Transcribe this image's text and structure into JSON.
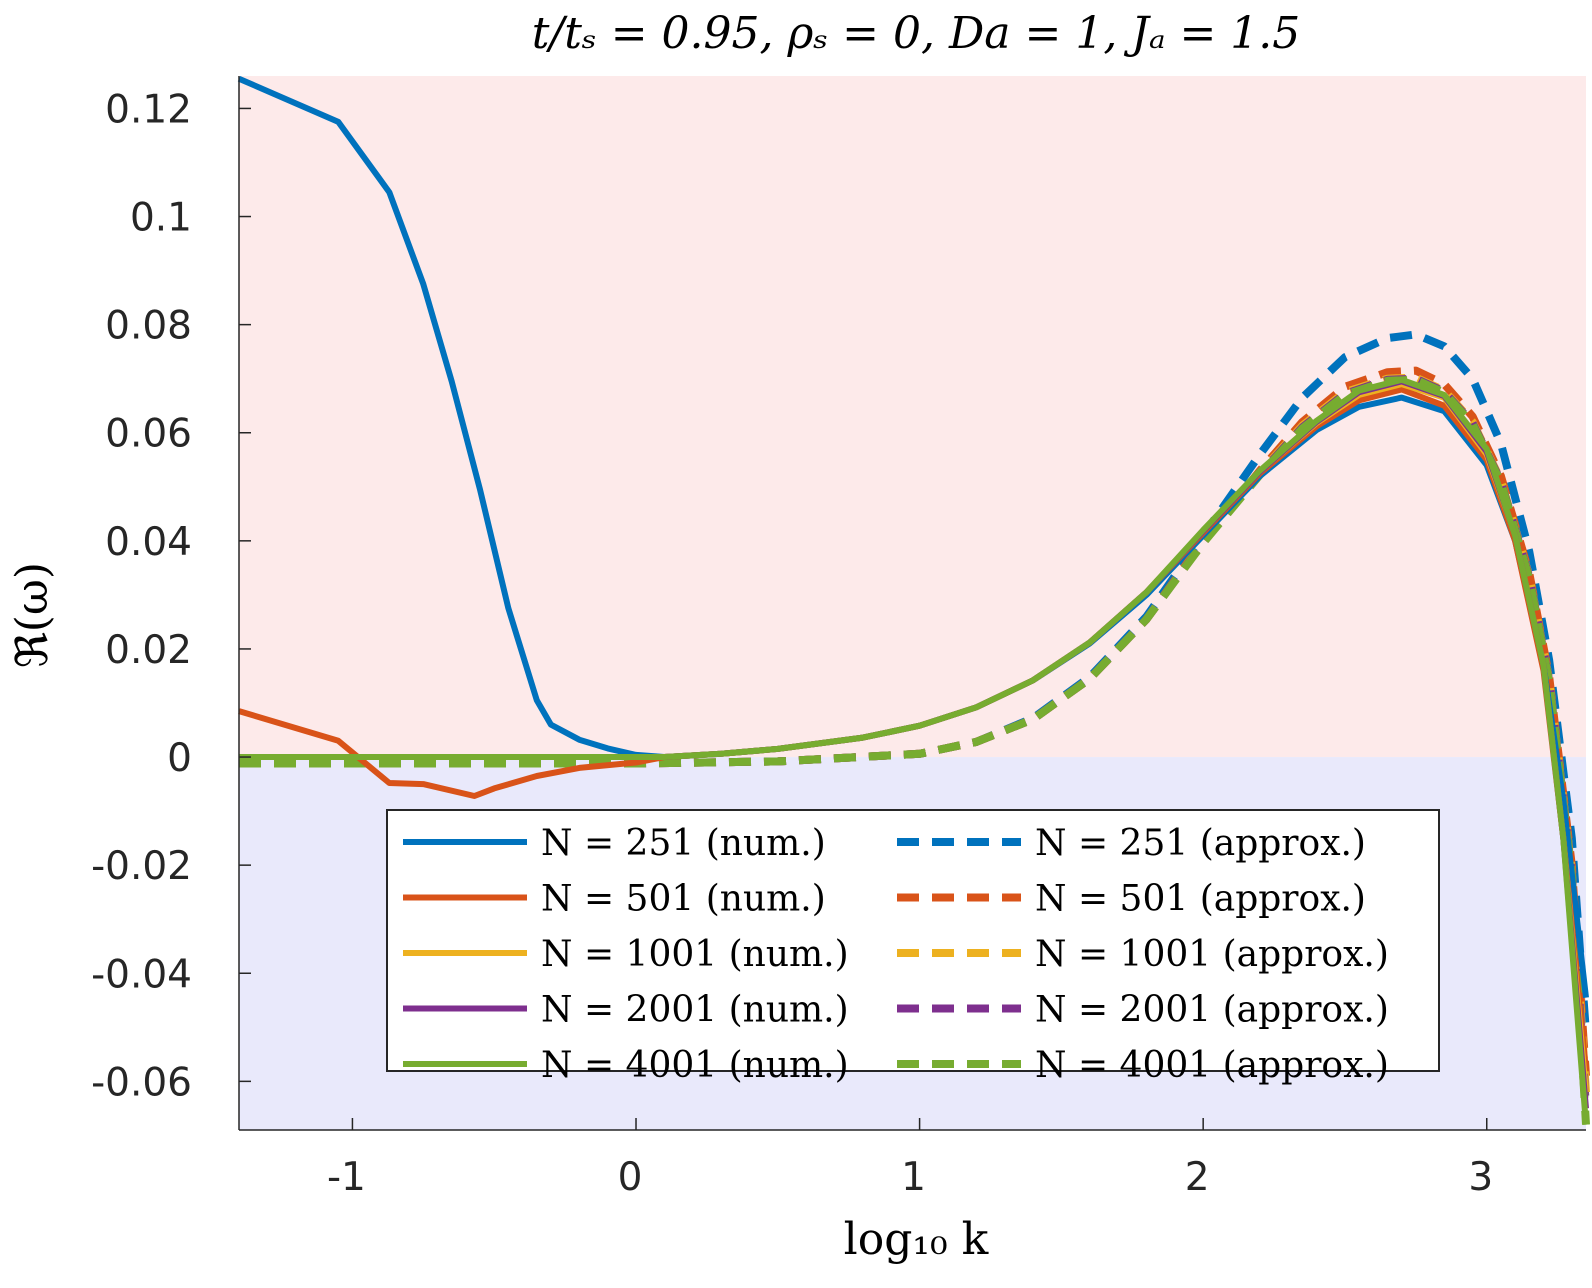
{
  "chart_data": {
    "type": "line",
    "title": "t/tₛ = 0.95, ρₛ = 0, Da = 1, Jₐ = 1.5",
    "xlabel": "log₁₀ k",
    "ylabel": "ℜ(ω)",
    "xlim": [
      -1.4,
      3.35
    ],
    "ylim": [
      -0.069,
      0.126
    ],
    "x_ticks": [
      -1,
      0,
      1,
      2,
      3
    ],
    "x_tick_labels": [
      "-1",
      "0",
      "1",
      "2",
      "3"
    ],
    "y_ticks": [
      -0.06,
      -0.04,
      -0.02,
      0,
      0.02,
      0.04,
      0.06,
      0.08,
      0.1,
      0.12
    ],
    "y_tick_labels": [
      "-0.06",
      "-0.04",
      "-0.02",
      "0",
      "0.02",
      "0.04",
      "0.06",
      "0.08",
      "0.1",
      "0.12"
    ],
    "regions": [
      {
        "name": "unstable",
        "y_from": 0,
        "y_to": 0.126,
        "color": "#fdeaea"
      },
      {
        "name": "stable",
        "y_from": -0.069,
        "y_to": 0,
        "color": "#e9e9fb"
      }
    ],
    "series": [
      {
        "name": "N = 251 (num.)",
        "color": "#0072BD",
        "dash": false,
        "x": [
          -1.4,
          -1.05,
          -0.87,
          -0.75,
          -0.65,
          -0.55,
          -0.45,
          -0.35,
          -0.3,
          -0.2,
          -0.1,
          0,
          0.1,
          0.3,
          0.5,
          0.8,
          1.0,
          1.2,
          1.4,
          1.6,
          1.8,
          2.0,
          2.2,
          2.4,
          2.55,
          2.7,
          2.85,
          3.0,
          3.1,
          3.2,
          3.27,
          3.35
        ],
        "y": [
          0.1255,
          0.1175,
          0.1045,
          0.0875,
          0.0695,
          0.0495,
          0.0275,
          0.0105,
          0.006,
          0.0032,
          0.0016,
          0.0004,
          0.0,
          0.0006,
          0.0015,
          0.0036,
          0.0058,
          0.0092,
          0.0142,
          0.021,
          0.03,
          0.041,
          0.052,
          0.0605,
          0.0648,
          0.0665,
          0.064,
          0.054,
          0.04,
          0.017,
          -0.008,
          -0.0445
        ]
      },
      {
        "name": "N = 501 (num.)",
        "color": "#D95319",
        "dash": false,
        "x": [
          -1.4,
          -1.05,
          -0.87,
          -0.75,
          -0.57,
          -0.5,
          -0.35,
          -0.2,
          0,
          0.1,
          0.3,
          0.5,
          0.8,
          1.0,
          1.2,
          1.4,
          1.6,
          1.8,
          2.0,
          2.2,
          2.4,
          2.55,
          2.7,
          2.85,
          3.0,
          3.1,
          3.2,
          3.27,
          3.35
        ],
        "y": [
          0.0085,
          0.003,
          -0.0048,
          -0.005,
          -0.0072,
          -0.0058,
          -0.0035,
          -0.002,
          -0.001,
          0.0,
          0.0006,
          0.0015,
          0.0036,
          0.0058,
          0.0092,
          0.0142,
          0.0212,
          0.0305,
          0.0415,
          0.0525,
          0.0612,
          0.066,
          0.068,
          0.065,
          0.055,
          0.04,
          0.016,
          -0.015,
          -0.058
        ]
      },
      {
        "name": "N = 1001 (num.)",
        "color": "#EDB120",
        "dash": false,
        "x": [
          -1.4,
          0,
          0.1,
          0.3,
          0.5,
          0.8,
          1.0,
          1.2,
          1.4,
          1.6,
          1.8,
          2.0,
          2.2,
          2.4,
          2.55,
          2.7,
          2.85,
          3.0,
          3.1,
          3.2,
          3.27,
          3.35
        ],
        "y": [
          0.0,
          0.0,
          0.0,
          0.0006,
          0.0015,
          0.0036,
          0.0058,
          0.0092,
          0.0142,
          0.0212,
          0.0305,
          0.0418,
          0.0528,
          0.0618,
          0.067,
          0.069,
          0.0665,
          0.056,
          0.041,
          0.017,
          -0.015,
          -0.062
        ]
      },
      {
        "name": "N = 2001 (num.)",
        "color": "#7E2F8E",
        "dash": false,
        "x": [
          -1.4,
          0,
          0.1,
          0.3,
          0.5,
          0.8,
          1.0,
          1.2,
          1.4,
          1.6,
          1.8,
          2.0,
          2.2,
          2.4,
          2.55,
          2.7,
          2.85,
          3.0,
          3.1,
          3.2,
          3.27,
          3.35
        ],
        "y": [
          0.0,
          0.0,
          0.0,
          0.0006,
          0.0015,
          0.0036,
          0.0058,
          0.0092,
          0.0142,
          0.0212,
          0.0305,
          0.0418,
          0.0528,
          0.062,
          0.0675,
          0.0695,
          0.0668,
          0.0565,
          0.041,
          0.017,
          -0.015,
          -0.065
        ]
      },
      {
        "name": "N = 4001 (num.)",
        "color": "#77AC30",
        "dash": false,
        "x": [
          -1.4,
          0,
          0.1,
          0.3,
          0.5,
          0.8,
          1.0,
          1.2,
          1.4,
          1.6,
          1.8,
          2.0,
          2.2,
          2.4,
          2.55,
          2.7,
          2.85,
          3.0,
          3.1,
          3.2,
          3.27,
          3.35
        ],
        "y": [
          0.0,
          0.0,
          0.0,
          0.0006,
          0.0015,
          0.0036,
          0.0058,
          0.0092,
          0.0142,
          0.0212,
          0.0305,
          0.042,
          0.053,
          0.0622,
          0.0678,
          0.0698,
          0.067,
          0.057,
          0.041,
          0.017,
          -0.015,
          -0.068
        ]
      },
      {
        "name": "N = 251 (approx.)",
        "color": "#0072BD",
        "dash": true,
        "x": [
          -1.4,
          0,
          0.5,
          1.0,
          1.2,
          1.4,
          1.6,
          1.8,
          2.0,
          2.2,
          2.35,
          2.5,
          2.65,
          2.75,
          2.85,
          2.95,
          3.05,
          3.15,
          3.22,
          3.3,
          3.35
        ],
        "y": [
          -0.0012,
          -0.0012,
          -0.0008,
          0.0006,
          0.0028,
          0.0072,
          0.0148,
          0.026,
          0.041,
          0.056,
          0.0665,
          0.074,
          0.0775,
          0.0782,
          0.076,
          0.07,
          0.058,
          0.038,
          0.018,
          -0.015,
          -0.051
        ]
      },
      {
        "name": "N = 501 (approx.)",
        "color": "#D95319",
        "dash": true,
        "x": [
          -1.4,
          0,
          0.5,
          1.0,
          1.2,
          1.4,
          1.6,
          1.8,
          2.0,
          2.2,
          2.35,
          2.5,
          2.65,
          2.75,
          2.85,
          2.95,
          3.05,
          3.15,
          3.22,
          3.3,
          3.35
        ],
        "y": [
          -0.0012,
          -0.0012,
          -0.0008,
          0.0006,
          0.0028,
          0.007,
          0.0145,
          0.0255,
          0.04,
          0.053,
          0.062,
          0.0685,
          0.0712,
          0.0715,
          0.069,
          0.063,
          0.052,
          0.034,
          0.015,
          -0.02,
          -0.059
        ]
      },
      {
        "name": "N = 1001 (approx.)",
        "color": "#EDB120",
        "dash": true,
        "x": [
          -1.4,
          0,
          0.5,
          1.0,
          1.2,
          1.4,
          1.6,
          1.8,
          2.0,
          2.2,
          2.35,
          2.5,
          2.65,
          2.75,
          2.85,
          2.95,
          3.05,
          3.15,
          3.22,
          3.3,
          3.35
        ],
        "y": [
          -0.0012,
          -0.0012,
          -0.0008,
          0.0006,
          0.0028,
          0.007,
          0.0145,
          0.0255,
          0.0398,
          0.0526,
          0.0613,
          0.0675,
          0.07,
          0.0702,
          0.0678,
          0.062,
          0.0512,
          0.0335,
          0.0145,
          -0.021,
          -0.062
        ]
      },
      {
        "name": "N = 2001 (approx.)",
        "color": "#7E2F8E",
        "dash": true,
        "x": [
          -1.4,
          0,
          0.5,
          1.0,
          1.2,
          1.4,
          1.6,
          1.8,
          2.0,
          2.2,
          2.35,
          2.5,
          2.65,
          2.75,
          2.85,
          2.95,
          3.05,
          3.15,
          3.22,
          3.3,
          3.35
        ],
        "y": [
          -0.0012,
          -0.0012,
          -0.0008,
          0.0006,
          0.0028,
          0.007,
          0.0145,
          0.0255,
          0.0397,
          0.0524,
          0.061,
          0.0672,
          0.0698,
          0.07,
          0.0676,
          0.0618,
          0.051,
          0.0333,
          0.0143,
          -0.0215,
          -0.065
        ]
      },
      {
        "name": "N = 4001 (approx.)",
        "color": "#77AC30",
        "dash": true,
        "x": [
          -1.4,
          0,
          0.5,
          1.0,
          1.2,
          1.4,
          1.6,
          1.8,
          2.0,
          2.2,
          2.35,
          2.5,
          2.65,
          2.75,
          2.85,
          2.95,
          3.05,
          3.15,
          3.22,
          3.3,
          3.35
        ],
        "y": [
          -0.0012,
          -0.0012,
          -0.0008,
          0.0006,
          0.0028,
          0.007,
          0.0145,
          0.0255,
          0.0396,
          0.0522,
          0.0608,
          0.067,
          0.0696,
          0.0698,
          0.0674,
          0.0616,
          0.0508,
          0.033,
          0.014,
          -0.022,
          -0.068
        ]
      }
    ],
    "legend": {
      "placement": "lower-center, inside axes, two columns",
      "columns": [
        [
          "N = 251 (num.)",
          "N = 501 (num.)",
          "N = 1001 (num.)",
          "N = 2001 (num.)",
          "N = 4001 (num.)"
        ],
        [
          "N = 251 (approx.)",
          "N = 501 (approx.)",
          "N = 1001 (approx.)",
          "N = 2001 (approx.)",
          "N = 4001 (approx.)"
        ]
      ]
    }
  }
}
